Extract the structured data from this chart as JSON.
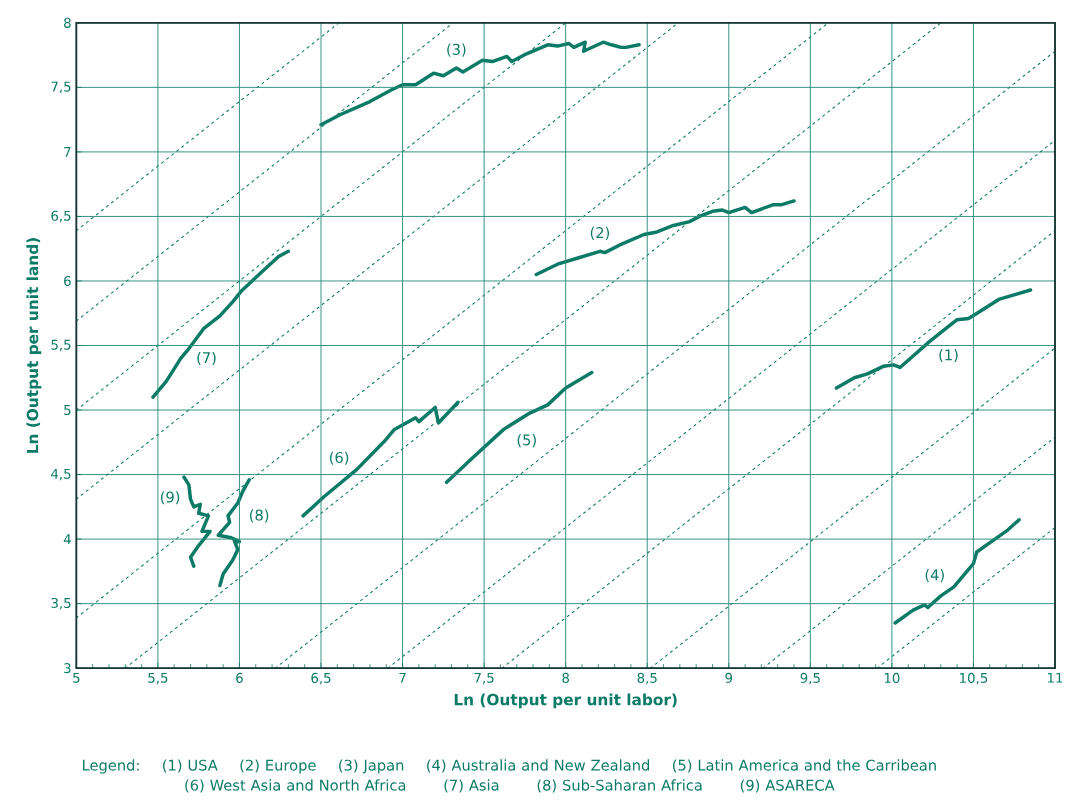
{
  "chart_data": {
    "type": "line",
    "xlabel": "Ln (Output per unit labor)",
    "ylabel": "Ln (Output per unit land)",
    "xlim": [
      5,
      11
    ],
    "ylim": [
      3,
      8
    ],
    "xticks": [
      5,
      {
        "value": 5.5,
        "label": "5,5"
      },
      6,
      {
        "value": 6.5,
        "label": "6,5"
      },
      7,
      {
        "value": 7.5,
        "label": "7,5"
      },
      8,
      {
        "value": 8.5,
        "label": "8,5"
      },
      9,
      {
        "value": 9.5,
        "label": "9,5"
      },
      10,
      {
        "value": 10.5,
        "label": "10,5"
      },
      11
    ],
    "yticks": [
      3,
      {
        "value": 3.5,
        "label": "3,5"
      },
      4,
      {
        "value": 4.5,
        "label": "4,5"
      },
      5,
      {
        "value": 5.5,
        "label": "5,5"
      },
      6,
      {
        "value": 6.5,
        "label": "6,5"
      },
      7,
      {
        "value": 7.5,
        "label": "7,5"
      },
      8
    ],
    "grid": true,
    "marker": "none",
    "line_style": "solid",
    "series": [
      {
        "name": "(1)",
        "color": "#0b7a66",
        "x": [
          9.66,
          9.77,
          9.85,
          9.95,
          10.01,
          10.05,
          10.14,
          10.23,
          10.33,
          10.4,
          10.47,
          10.51,
          10.66,
          10.77,
          10.85
        ],
        "values": [
          5.17,
          5.25,
          5.28,
          5.34,
          5.35,
          5.33,
          5.43,
          5.53,
          5.63,
          5.7,
          5.71,
          5.74,
          5.86,
          5.9,
          5.93
        ]
      },
      {
        "name": "(2)",
        "color": "#0b7a66",
        "x": [
          7.82,
          7.95,
          8.08,
          8.21,
          8.24,
          8.35,
          8.48,
          8.56,
          8.66,
          8.76,
          8.82,
          8.9,
          8.96,
          9.0,
          9.1,
          9.14,
          9.27,
          9.32,
          9.4
        ],
        "values": [
          6.05,
          6.13,
          6.18,
          6.23,
          6.22,
          6.29,
          6.36,
          6.38,
          6.43,
          6.46,
          6.5,
          6.54,
          6.55,
          6.53,
          6.57,
          6.53,
          6.59,
          6.59,
          6.62
        ]
      },
      {
        "name": "(3)",
        "color": "#0b7a66",
        "x": [
          6.5,
          6.62,
          6.8,
          6.93,
          7.0,
          7.08,
          7.19,
          7.25,
          7.33,
          7.37,
          7.49,
          7.55,
          7.64,
          7.67,
          7.76,
          7.89,
          7.95,
          8.02,
          8.05,
          8.12,
          8.11,
          8.23,
          8.28,
          8.34,
          8.37,
          8.45
        ],
        "values": [
          7.21,
          7.29,
          7.39,
          7.48,
          7.52,
          7.52,
          7.61,
          7.59,
          7.65,
          7.62,
          7.71,
          7.7,
          7.74,
          7.7,
          7.76,
          7.83,
          7.82,
          7.84,
          7.81,
          7.85,
          7.78,
          7.85,
          7.83,
          7.81,
          7.81,
          7.83
        ]
      },
      {
        "name": "(4)",
        "color": "#0b7a66",
        "x": [
          10.02,
          10.13,
          10.2,
          10.22,
          10.3,
          10.38,
          10.46,
          10.5,
          10.52,
          10.61,
          10.71,
          10.78
        ],
        "values": [
          3.35,
          3.45,
          3.49,
          3.47,
          3.56,
          3.63,
          3.75,
          3.81,
          3.9,
          3.98,
          4.07,
          4.15
        ]
      },
      {
        "name": "(5)",
        "color": "#0b7a66",
        "x": [
          7.27,
          7.43,
          7.62,
          7.77,
          7.89,
          8.0,
          8.16
        ],
        "values": [
          4.44,
          4.63,
          4.85,
          4.97,
          5.04,
          5.17,
          5.29
        ]
      },
      {
        "name": "(6)",
        "color": "#0b7a66",
        "x": [
          6.39,
          6.52,
          6.72,
          6.89,
          6.95,
          7.08,
          7.1,
          7.2,
          7.22,
          7.34
        ],
        "values": [
          4.18,
          4.33,
          4.54,
          4.76,
          4.85,
          4.94,
          4.91,
          5.02,
          4.9,
          5.06
        ]
      },
      {
        "name": "(7)",
        "color": "#0b7a66",
        "x": [
          5.47,
          5.55,
          5.59,
          5.64,
          5.68,
          5.78,
          5.88,
          5.96,
          6.01,
          6.12,
          6.24,
          6.3
        ],
        "values": [
          5.1,
          5.22,
          5.3,
          5.4,
          5.46,
          5.63,
          5.73,
          5.84,
          5.92,
          6.05,
          6.19,
          6.23
        ]
      },
      {
        "name": "(8)",
        "color": "#0b7a66",
        "x": [
          5.88,
          5.9,
          5.96,
          5.99,
          5.97,
          6.0,
          5.95,
          5.87,
          5.94,
          5.93,
          5.99,
          6.02,
          6.06
        ],
        "values": [
          3.64,
          3.73,
          3.84,
          3.92,
          3.98,
          3.98,
          4.01,
          4.03,
          4.13,
          4.18,
          4.28,
          4.37,
          4.46
        ]
      },
      {
        "name": "(9)",
        "color": "#0b7a66",
        "x": [
          5.66,
          5.69,
          5.7,
          5.72,
          5.76,
          5.75,
          5.81,
          5.77,
          5.82,
          5.75,
          5.7,
          5.72
        ],
        "values": [
          4.48,
          4.42,
          4.31,
          4.25,
          4.27,
          4.2,
          4.18,
          4.06,
          4.06,
          3.95,
          3.86,
          3.79
        ]
      },
      {
        "color": "#0b7a66",
        "line_style": "dotted",
        "x": [
          5,
          6.61
        ],
        "values": [
          6.39,
          8
        ]
      },
      {
        "color": "#0b7a66",
        "line_style": "dotted",
        "x": [
          5,
          7.31
        ],
        "values": [
          5.69,
          8
        ]
      },
      {
        "color": "#0b7a66",
        "line_style": "dotted",
        "x": [
          5,
          8
        ],
        "values": [
          5,
          8
        ]
      },
      {
        "color": "#0b7a66",
        "line_style": "dotted",
        "x": [
          5,
          8.69
        ],
        "values": [
          4.31,
          8
        ]
      },
      {
        "color": "#0b7a66",
        "line_style": "dotted",
        "x": [
          5,
          9.61
        ],
        "values": [
          3.39,
          8
        ]
      },
      {
        "color": "#0b7a66",
        "line_style": "dotted",
        "x": [
          5.3,
          10.3
        ],
        "values": [
          3,
          8
        ]
      },
      {
        "color": "#0b7a66",
        "line_style": "dotted",
        "x": [
          6.22,
          11
        ],
        "values": [
          3,
          7.78
        ]
      },
      {
        "color": "#0b7a66",
        "line_style": "dotted",
        "x": [
          6.91,
          11
        ],
        "values": [
          3,
          7.09
        ]
      },
      {
        "color": "#0b7a66",
        "line_style": "dotted",
        "x": [
          7.61,
          11
        ],
        "values": [
          3,
          6.39
        ]
      },
      {
        "color": "#0b7a66",
        "line_style": "dotted",
        "x": [
          8.52,
          11
        ],
        "values": [
          3,
          5.48
        ]
      },
      {
        "color": "#0b7a66",
        "line_style": "dotted",
        "x": [
          9.21,
          11
        ],
        "values": [
          3,
          4.79
        ]
      },
      {
        "color": "#0b7a66",
        "line_style": "dotted",
        "x": [
          9.91,
          11
        ],
        "values": [
          3,
          4.09
        ]
      }
    ],
    "annotations": [
      "Legend:",
      "(1) USA",
      "(2) Europe",
      "(3) Japan",
      "(4) Australia and New Zealand",
      "(5) Latin America and the Carribean",
      "(6) West Asia and North Africa",
      "(7) Asia",
      "(8) Sub-Saharan Africa",
      "(9) ASARECA"
    ]
  }
}
